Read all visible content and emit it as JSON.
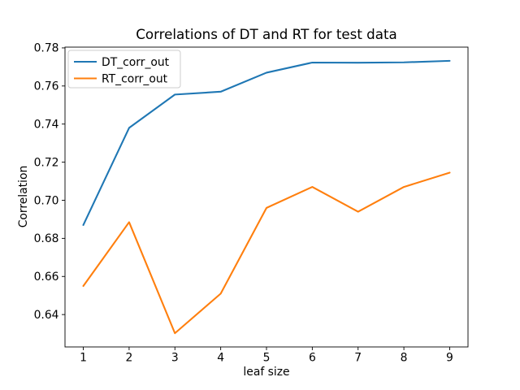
{
  "chart_data": {
    "type": "line",
    "title": "Correlations of DT and RT for test data",
    "xlabel": "leaf size",
    "ylabel": "Correlation",
    "x": [
      1,
      2,
      3,
      4,
      5,
      6,
      7,
      8,
      9
    ],
    "series": [
      {
        "name": "DT_corr_out",
        "color": "#1f77b4",
        "values": [
          0.687,
          0.738,
          0.7555,
          0.757,
          0.767,
          0.7723,
          0.7722,
          0.7724,
          0.7732
        ]
      },
      {
        "name": "RT_corr_out",
        "color": "#ff7f0e",
        "values": [
          0.655,
          0.6885,
          0.6302,
          0.651,
          0.696,
          0.707,
          0.694,
          0.707,
          0.7145
        ]
      }
    ],
    "xticks": [
      "1",
      "2",
      "3",
      "4",
      "5",
      "6",
      "7",
      "8",
      "9"
    ],
    "yticks": [
      "0.64",
      "0.66",
      "0.68",
      "0.70",
      "0.72",
      "0.74",
      "0.76",
      "0.78"
    ],
    "xlim": [
      0.6,
      9.4
    ],
    "ylim": [
      0.623,
      0.7804
    ],
    "grid": false,
    "legend_position": "upper left",
    "background": "#ffffff",
    "axis_color": "#000000",
    "legend_border_color": "#cccccc"
  }
}
